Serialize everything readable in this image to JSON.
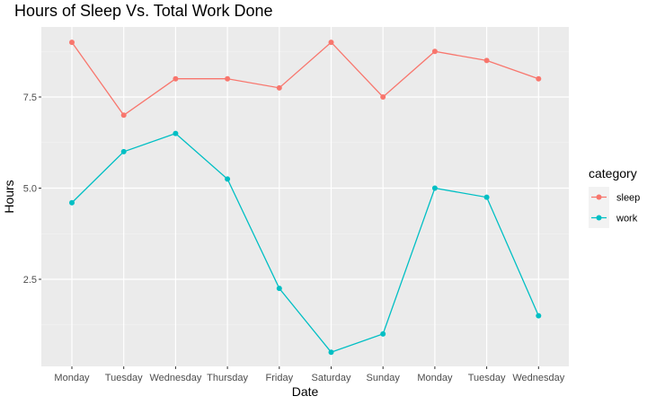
{
  "chart_data": {
    "type": "line",
    "title": "Hours of Sleep Vs. Total Work Done",
    "xlabel": "Date",
    "ylabel": "Hours",
    "categories": [
      "Monday",
      "Tuesday",
      "Wednesday",
      "Thursday",
      "Friday",
      "Saturday",
      "Sunday",
      "Monday",
      "Tuesday",
      "Wednesday"
    ],
    "y_ticks": [
      2.5,
      5.0,
      7.5
    ],
    "y_tick_labels": [
      "2.5",
      "5.0",
      "7.5"
    ],
    "ylim": [
      0,
      9.4
    ],
    "grid": true,
    "legend": {
      "title": "category",
      "position": "right"
    },
    "series": [
      {
        "name": "sleep",
        "color": "#F8766D",
        "values": [
          9.0,
          7.0,
          8.0,
          8.0,
          7.75,
          9.0,
          7.5,
          8.75,
          8.5,
          8.0
        ]
      },
      {
        "name": "work",
        "color": "#00BFC4",
        "values": [
          4.6,
          6.0,
          6.5,
          5.25,
          2.25,
          0.5,
          1.0,
          5.0,
          4.75,
          1.5
        ]
      }
    ]
  }
}
